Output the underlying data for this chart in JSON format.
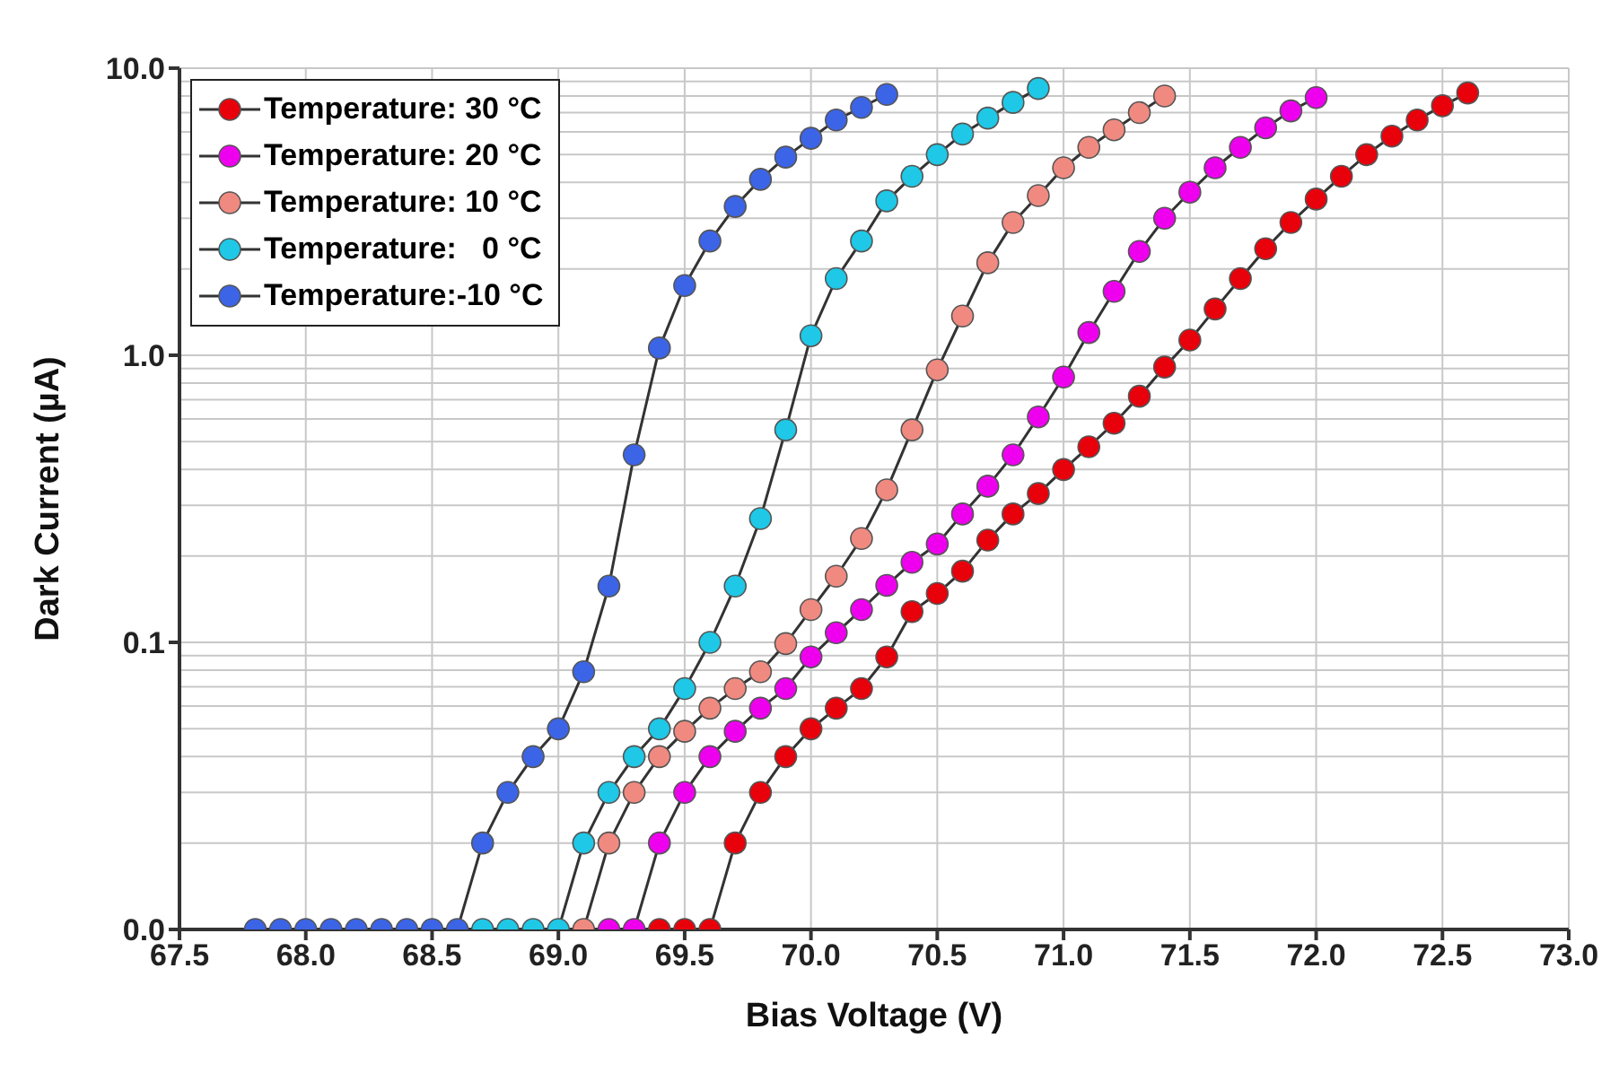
{
  "chart_data": {
    "type": "line",
    "xlabel": "Bias Voltage (V)",
    "ylabel": "Dark Current (µA)",
    "log": "y",
    "grid": true,
    "legend": "top left",
    "marker": "circle",
    "line_style": "solid",
    "xlim": [
      67.5,
      73.0
    ],
    "xticks": [
      {
        "value": 67.5,
        "label": "67.5"
      },
      {
        "value": 68,
        "label": "68.0"
      },
      {
        "value": 68.5,
        "label": "68.5"
      },
      {
        "value": 69,
        "label": "69.0"
      },
      {
        "value": 69.5,
        "label": "69.5"
      },
      {
        "value": 70,
        "label": "70.0"
      },
      {
        "value": 70.5,
        "label": "70.5"
      },
      {
        "value": 71,
        "label": "71.0"
      },
      {
        "value": 71.5,
        "label": "71.5"
      },
      {
        "value": 72,
        "label": "72.0"
      },
      {
        "value": 72.5,
        "label": "72.5"
      },
      {
        "value": 73,
        "label": "73.0"
      }
    ],
    "ylim": [
      0.01,
      10
    ],
    "yticks": [
      {
        "value": 0.01,
        "label": "0.0"
      },
      0.1,
      {
        "value": 1,
        "label": "1.0"
      },
      {
        "value": 10,
        "label": "10.0"
      }
    ],
    "series": [
      {
        "name": "Temperature: 30 °C",
        "color": "#e8000b",
        "x": [
          69.4,
          69.5,
          69.6,
          69.7,
          69.8,
          69.9,
          70.0,
          70.1,
          70.2,
          70.3,
          70.4,
          70.5,
          70.6,
          70.7,
          70.8,
          70.9,
          71.0,
          71.1,
          71.2,
          71.3,
          71.4,
          71.5,
          71.6,
          71.7,
          71.8,
          71.9,
          72.0,
          72.1,
          72.2,
          72.3,
          72.4,
          72.5,
          72.6
        ],
        "values": [
          0.01,
          0.01,
          0.01,
          0.02,
          0.03,
          0.04,
          0.05,
          0.059,
          0.069,
          0.089,
          0.128,
          0.148,
          0.177,
          0.227,
          0.28,
          0.33,
          0.4,
          0.48,
          0.58,
          0.72,
          0.91,
          1.13,
          1.45,
          1.85,
          2.35,
          2.9,
          3.5,
          4.2,
          5.0,
          5.8,
          6.6,
          7.4,
          8.2
        ]
      },
      {
        "name": "Temperature: 20 °C",
        "color": "#ee00ee",
        "x": [
          69.2,
          69.3,
          69.4,
          69.5,
          69.6,
          69.7,
          69.8,
          69.9,
          70.0,
          70.1,
          70.2,
          70.3,
          70.4,
          70.5,
          70.6,
          70.7,
          70.8,
          70.9,
          71.0,
          71.1,
          71.2,
          71.3,
          71.4,
          71.5,
          71.6,
          71.7,
          71.8,
          71.9,
          72.0
        ],
        "values": [
          0.01,
          0.01,
          0.02,
          0.03,
          0.04,
          0.049,
          0.059,
          0.069,
          0.089,
          0.108,
          0.13,
          0.158,
          0.19,
          0.22,
          0.28,
          0.35,
          0.45,
          0.61,
          0.84,
          1.2,
          1.67,
          2.3,
          3.0,
          3.7,
          4.5,
          5.3,
          6.2,
          7.1,
          7.9
        ]
      },
      {
        "name": "Temperature: 10 °C",
        "color": "#f08a80",
        "x": [
          69.1,
          69.2,
          69.3,
          69.4,
          69.5,
          69.6,
          69.7,
          69.8,
          69.9,
          70.0,
          70.1,
          70.2,
          70.3,
          70.4,
          70.5,
          70.6,
          70.7,
          70.8,
          70.9,
          71.0,
          71.1,
          71.2,
          71.3,
          71.4
        ],
        "values": [
          0.01,
          0.02,
          0.03,
          0.04,
          0.049,
          0.059,
          0.069,
          0.079,
          0.099,
          0.13,
          0.17,
          0.23,
          0.34,
          0.55,
          0.89,
          1.37,
          2.1,
          2.9,
          3.6,
          4.5,
          5.3,
          6.1,
          7.0,
          8.0
        ]
      },
      {
        "name": "Temperature:   0 °C",
        "color": "#1ec8e6",
        "x": [
          68.7,
          68.8,
          68.9,
          69.0,
          69.1,
          69.2,
          69.3,
          69.4,
          69.5,
          69.6,
          69.7,
          69.8,
          69.9,
          70.0,
          70.1,
          70.2,
          70.3,
          70.4,
          70.5,
          70.6,
          70.7,
          70.8,
          70.9
        ],
        "values": [
          0.01,
          0.01,
          0.01,
          0.01,
          0.02,
          0.03,
          0.04,
          0.05,
          0.069,
          0.1,
          0.157,
          0.27,
          0.55,
          1.17,
          1.85,
          2.5,
          3.45,
          4.2,
          5.0,
          5.9,
          6.7,
          7.6,
          8.5
        ]
      },
      {
        "name": "Temperature:-10 °C",
        "color": "#3c64e6",
        "x": [
          67.8,
          67.9,
          68.0,
          68.1,
          68.2,
          68.3,
          68.4,
          68.5,
          68.6,
          68.7,
          68.8,
          68.9,
          69.0,
          69.1,
          69.2,
          69.3,
          69.4,
          69.5,
          69.6,
          69.7,
          69.8,
          69.9,
          70.0,
          70.1,
          70.2,
          70.3
        ],
        "values": [
          0.01,
          0.01,
          0.01,
          0.01,
          0.01,
          0.01,
          0.01,
          0.01,
          0.01,
          0.02,
          0.03,
          0.04,
          0.05,
          0.079,
          0.157,
          0.45,
          1.06,
          1.75,
          2.5,
          3.3,
          4.1,
          4.9,
          5.7,
          6.6,
          7.3,
          8.1
        ]
      }
    ]
  }
}
